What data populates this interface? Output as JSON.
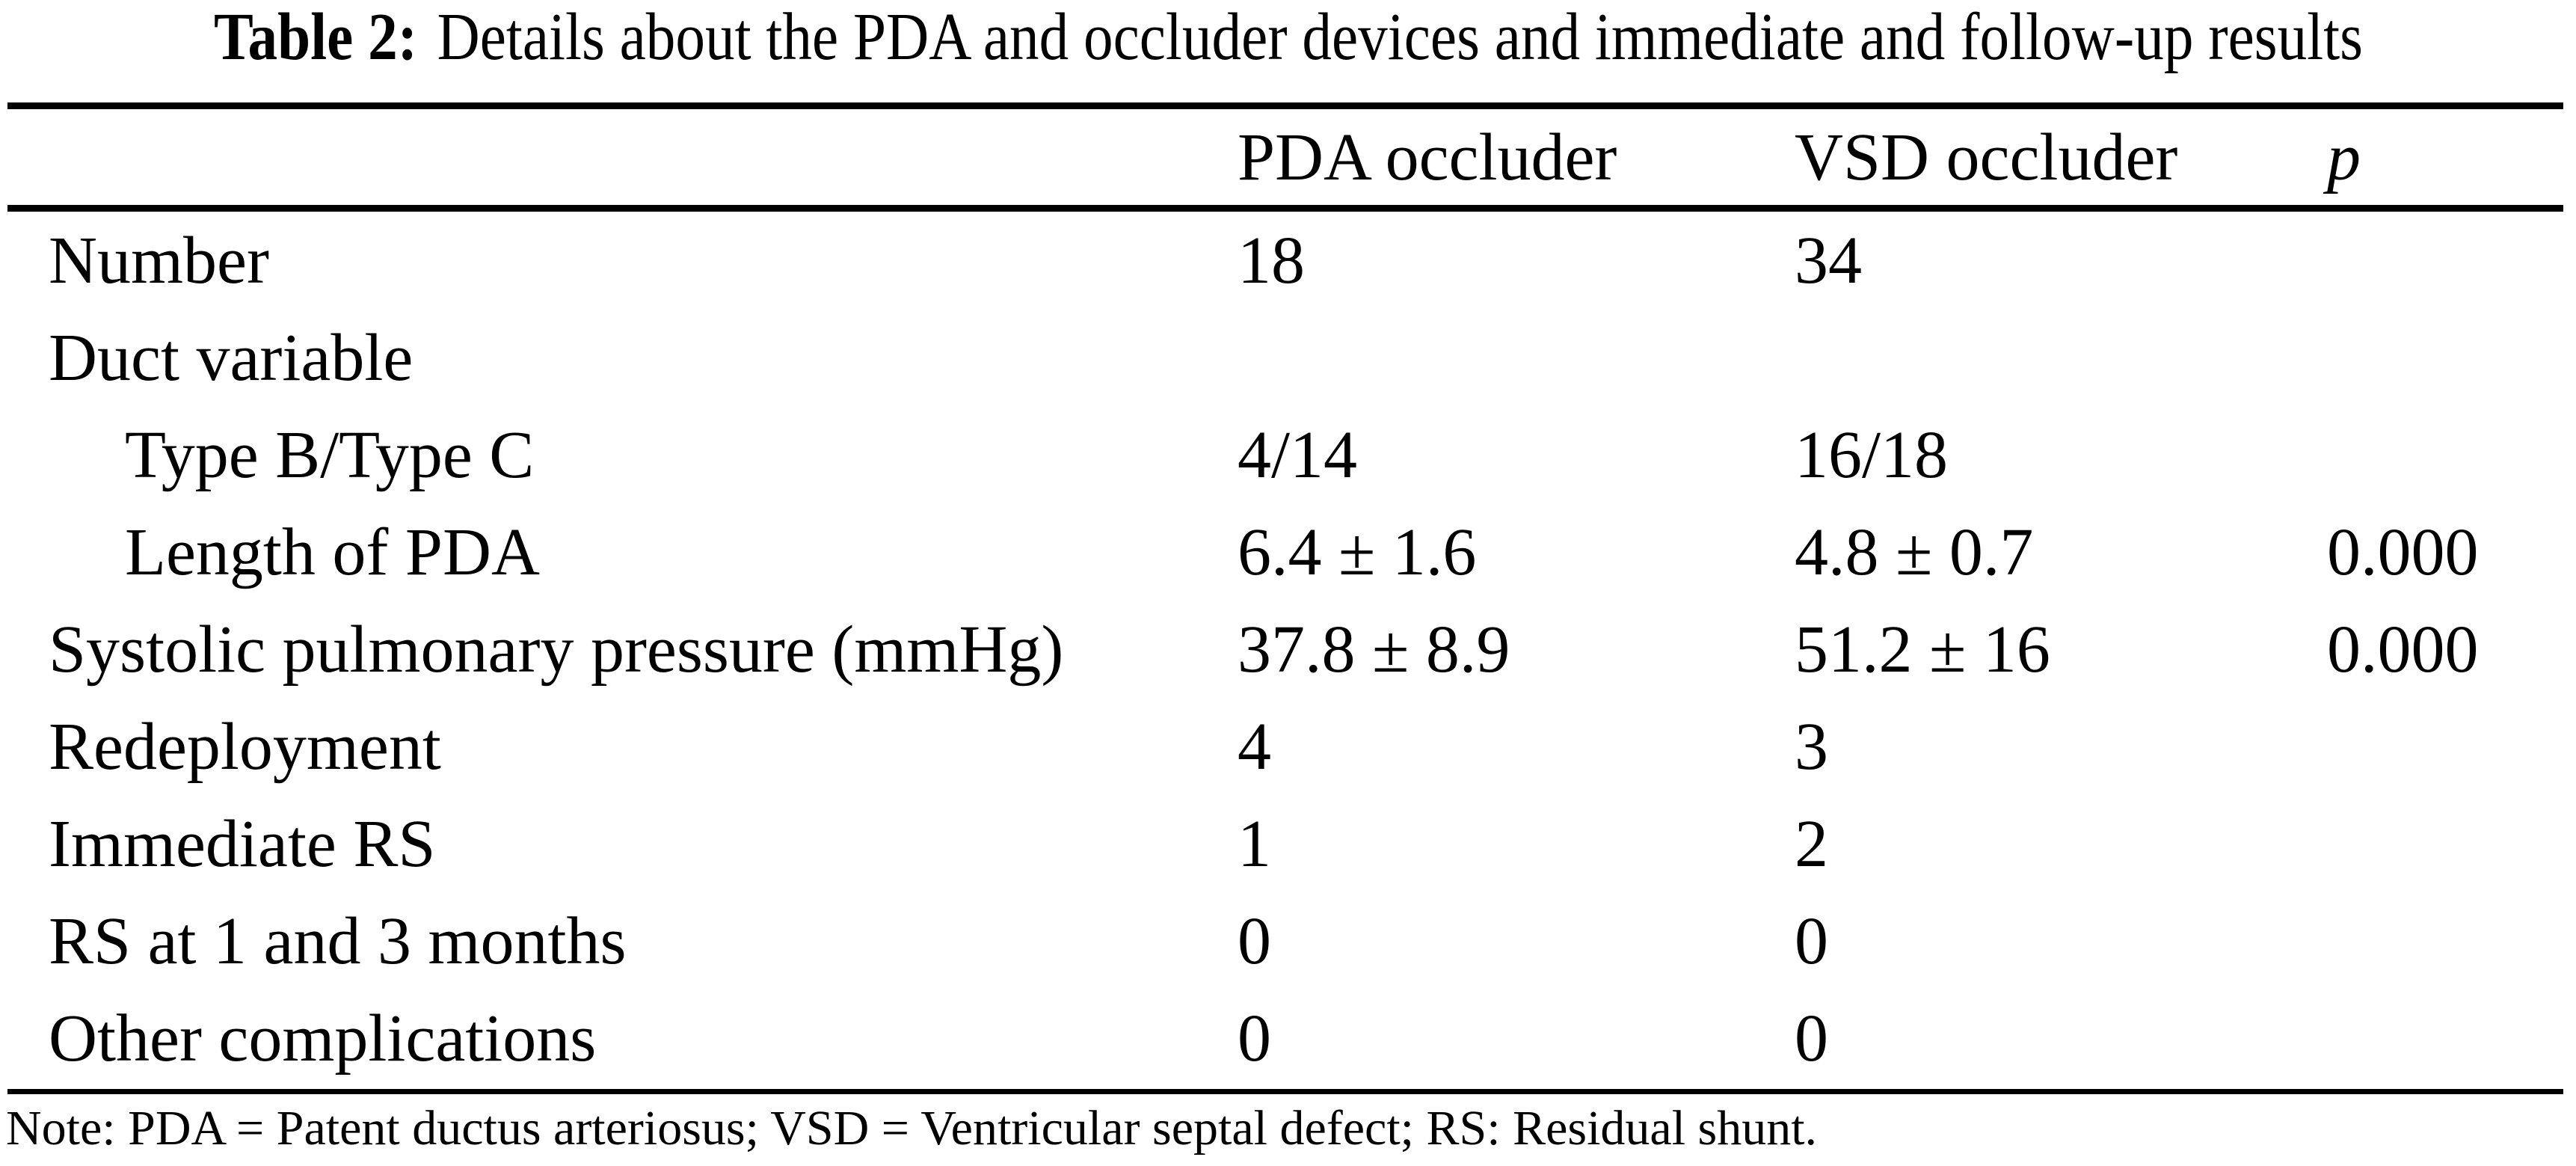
{
  "table": {
    "caption": {
      "label": "Table 2:",
      "text": "Details about the PDA and occluder devices and immediate and follow-up results"
    },
    "columns": [
      "",
      "PDA occluder",
      "VSD occluder",
      "p"
    ],
    "rows": [
      {
        "label": "Number",
        "indent": false,
        "pda": "18",
        "vsd": "34",
        "p": ""
      },
      {
        "label": "Duct variable",
        "indent": false,
        "pda": "",
        "vsd": "",
        "p": ""
      },
      {
        "label": "Type B/Type C",
        "indent": true,
        "pda": "4/14",
        "vsd": "16/18",
        "p": ""
      },
      {
        "label": "Length of PDA",
        "indent": true,
        "pda": "6.4 ± 1.6",
        "vsd": "4.8 ± 0.7",
        "p": "0.000"
      },
      {
        "label": "Systolic pulmonary pressure (mmHg)",
        "indent": false,
        "pda": "37.8 ± 8.9",
        "vsd": "51.2 ± 16",
        "p": "0.000"
      },
      {
        "label": "Redeployment",
        "indent": false,
        "pda": "4",
        "vsd": "3",
        "p": ""
      },
      {
        "label": "Immediate RS",
        "indent": false,
        "pda": "1",
        "vsd": "2",
        "p": ""
      },
      {
        "label": "RS at 1 and 3 months",
        "indent": false,
        "pda": "0",
        "vsd": "0",
        "p": ""
      },
      {
        "label": "Other complications",
        "indent": false,
        "pda": "0",
        "vsd": "0",
        "p": ""
      }
    ],
    "note": "Note: PDA = Patent ductus arteriosus; VSD = Ventricular septal defect; RS: Residual shunt."
  }
}
